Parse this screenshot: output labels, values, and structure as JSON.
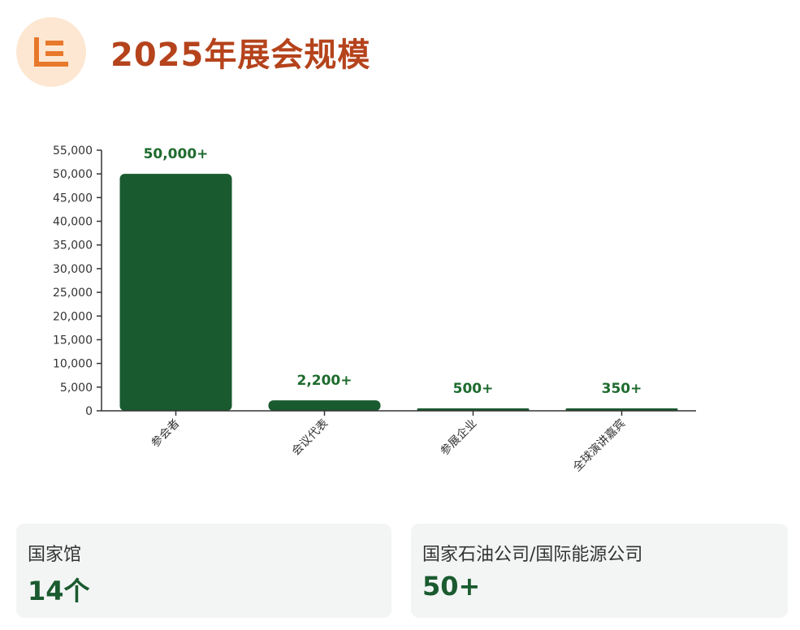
{
  "header": {
    "title": "2025年展会规模",
    "icon": "list-icon",
    "accent_color": "#e8782a"
  },
  "chart_data": {
    "type": "bar",
    "categories": [
      "参会者",
      "会议代表",
      "参展企业",
      "全球演讲嘉宾"
    ],
    "values": [
      50000,
      2200,
      500,
      350
    ],
    "data_labels": [
      "50,000+",
      "2,200+",
      "500+",
      "350+"
    ],
    "ylim": [
      0,
      55000
    ],
    "yticks": [
      "0",
      "5,000",
      "10,000",
      "15,000",
      "20,000",
      "25,000",
      "30,000",
      "35,000",
      "40,000",
      "45,000",
      "50,000",
      "55,000"
    ],
    "ytick_values": [
      0,
      5000,
      10000,
      15000,
      20000,
      25000,
      30000,
      35000,
      40000,
      45000,
      50000,
      55000
    ],
    "grid": false,
    "bar_color": "#1a5a2f",
    "label_color": "#1e6b2e"
  },
  "cards": [
    {
      "label": "国家馆",
      "value": "14个"
    },
    {
      "label": "国家石油公司/国际能源公司",
      "value": "50+"
    }
  ]
}
